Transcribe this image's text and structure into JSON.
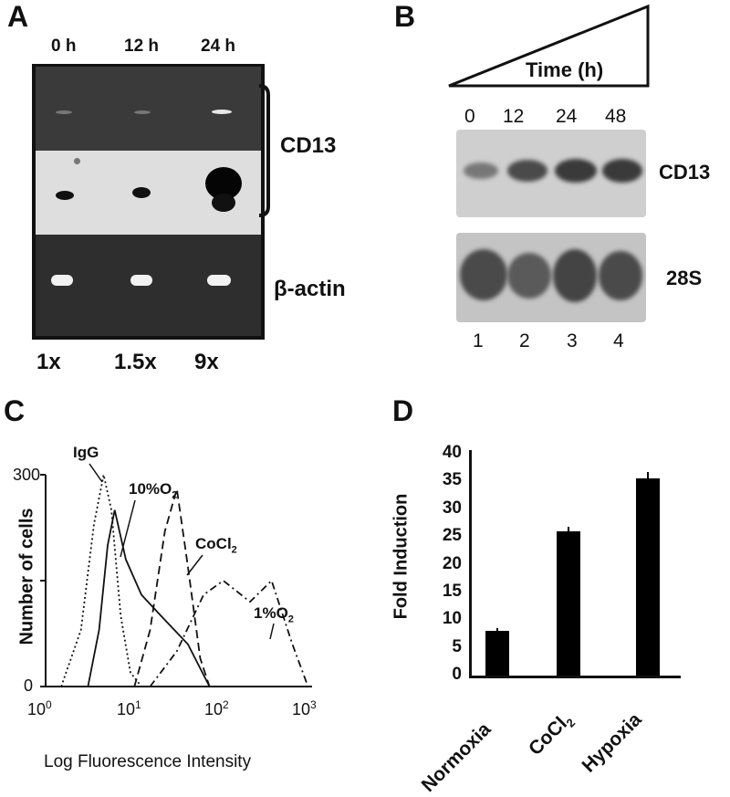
{
  "panel_a": {
    "label": "A",
    "times": [
      "0 h",
      "12 h",
      "24 h"
    ],
    "gene_label": "CD13",
    "control_label": "β-actin",
    "fold": [
      "1x",
      "1.5x",
      "9x"
    ]
  },
  "panel_b": {
    "label": "B",
    "time_header": "Time (h)",
    "times": [
      "0",
      "12",
      "24",
      "48"
    ],
    "blot1_label": "CD13",
    "blot2_label": "28S",
    "lanes": [
      "1",
      "2",
      "3",
      "4"
    ]
  },
  "panel_c": {
    "label": "C",
    "ylabel": "Number of cells",
    "xlabel": "Log Fluorescence Intensity",
    "y_tick_top": "300",
    "y_tick_zero": "0",
    "x_ticks": [
      {
        "base": "10",
        "exp": "0"
      },
      {
        "base": "10",
        "exp": "1"
      },
      {
        "base": "10",
        "exp": "2"
      },
      {
        "base": "10",
        "exp": "3"
      }
    ],
    "curves": {
      "igg": {
        "label": "IgG"
      },
      "o10": {
        "label": "10%O",
        "sub": "2"
      },
      "cocl": {
        "label": "CoCl",
        "sub": "2"
      },
      "o1": {
        "label": "1%O",
        "sub": "2"
      }
    }
  },
  "chart_data": [
    {
      "type": "line",
      "title": "",
      "xlabel": "Log Fluorescence Intensity",
      "ylabel": "Number of cells",
      "x_scale": "log",
      "xlim": [
        1,
        1000
      ],
      "ylim": [
        0,
        300
      ],
      "series": [
        {
          "name": "IgG",
          "style": "dotted",
          "x": [
            1.5,
            2.5,
            3.5,
            4.5,
            5.5,
            7,
            9,
            12
          ],
          "y": [
            0,
            80,
            230,
            300,
            250,
            100,
            20,
            0
          ]
        },
        {
          "name": "10%O2",
          "style": "solid",
          "x": [
            3,
            4,
            5,
            6,
            8,
            12,
            20,
            40,
            70
          ],
          "y": [
            0,
            80,
            200,
            250,
            180,
            130,
            100,
            60,
            0
          ]
        },
        {
          "name": "CoCl2",
          "style": "dashed",
          "x": [
            10,
            15,
            22,
            30,
            40,
            55,
            70
          ],
          "y": [
            0,
            80,
            220,
            280,
            170,
            40,
            0
          ]
        },
        {
          "name": "1%O2",
          "style": "dash-dot",
          "x": [
            15,
            30,
            60,
            100,
            200,
            350,
            600,
            900
          ],
          "y": [
            0,
            50,
            130,
            150,
            120,
            150,
            60,
            0
          ]
        }
      ]
    },
    {
      "type": "bar",
      "title": "",
      "xlabel": "",
      "ylabel": "Fold Induction",
      "ylim": [
        0,
        40
      ],
      "y_ticks": [
        "40",
        "35",
        "30",
        "25",
        "20",
        "15",
        "10",
        "5",
        "0"
      ],
      "categories": [
        "Normoxia",
        "CoCl2",
        "Hypoxia"
      ],
      "values": [
        8,
        26,
        35.5
      ],
      "errors": [
        0.5,
        0.8,
        1.2
      ]
    }
  ],
  "panel_d": {
    "label": "D",
    "categories": [
      {
        "label": "Normoxia"
      },
      {
        "label": "CoCl",
        "sub": "2"
      },
      {
        "label": "Hypoxia"
      }
    ]
  }
}
